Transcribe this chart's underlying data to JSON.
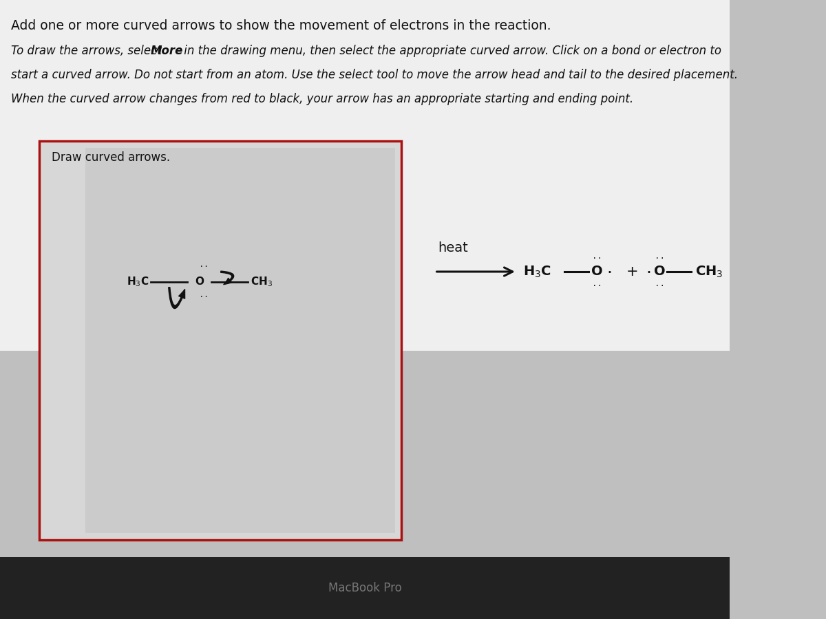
{
  "bg_color": "#c0bfbf",
  "top_bg": "#f0efef",
  "box_bg": "#d8d7d7",
  "inner_box_bg": "#cccbcb",
  "box_border_color": "#aa1111",
  "title_text": "Add one or more curved arrows to show the movement of electrons in the reaction.",
  "instr_line1_pre": "To draw the arrows, select ",
  "instr_line1_bold": "More",
  "instr_line1_post": " in the drawing menu, then select the appropriate curved arrow. Click on a bond or electron to",
  "instr_line2": "start a curved arrow. Do not start from an atom. Use the select tool to move the arrow head and tail to the desired placement.",
  "instr_line3": "When the curved arrow changes from red to black, your arrow has an appropriate starting and ending point.",
  "draw_label": "Draw curved arrows.",
  "heat_label": "heat",
  "macbook_label": "MacBook Pro",
  "font_color": "#111111",
  "title_fontsize": 13.5,
  "instr_fontsize": 12.0,
  "mol_fontsize": 11,
  "prod_fontsize": 14
}
